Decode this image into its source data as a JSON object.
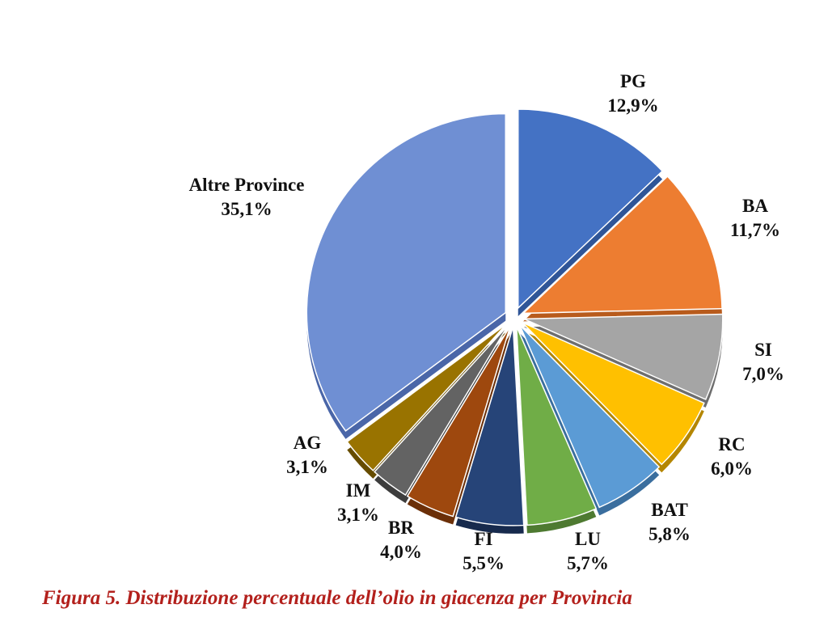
{
  "chart_data": {
    "type": "pie",
    "title": "",
    "slices": [
      {
        "label": "PG",
        "value_label": "12,9%",
        "value": 12.9,
        "color": "#4472c4",
        "dark": "#2f5597"
      },
      {
        "label": "BA",
        "value_label": "11,7%",
        "value": 11.7,
        "color": "#ed7d31",
        "dark": "#b85b1c"
      },
      {
        "label": "SI",
        "value_label": "7,0%",
        "value": 7.0,
        "color": "#a5a5a5",
        "dark": "#6e6e6e"
      },
      {
        "label": "RC",
        "value_label": "6,0%",
        "value": 6.0,
        "color": "#ffc000",
        "dark": "#b48600"
      },
      {
        "label": "BAT",
        "value_label": "5,8%",
        "value": 5.8,
        "color": "#5b9bd5",
        "dark": "#3a6e9e"
      },
      {
        "label": "LU",
        "value_label": "5,7%",
        "value": 5.7,
        "color": "#70ad47",
        "dark": "#4e7a31"
      },
      {
        "label": "FI",
        "value_label": "5,5%",
        "value": 5.5,
        "color": "#264478",
        "dark": "#172a4d"
      },
      {
        "label": "BR",
        "value_label": "4,0%",
        "value": 4.0,
        "color": "#9e480e",
        "dark": "#6b2f08"
      },
      {
        "label": "IM",
        "value_label": "3,1%",
        "value": 3.1,
        "color": "#636363",
        "dark": "#3d3d3d"
      },
      {
        "label": "AG",
        "value_label": "3,1%",
        "value": 3.1,
        "color": "#997300",
        "dark": "#664c00"
      },
      {
        "label": "Altre Province",
        "value_label": "35,1%",
        "value": 35.1,
        "color": "#6f8fd3",
        "dark": "#4a66a8"
      }
    ],
    "exploded": true,
    "legend": "none"
  },
  "caption": "Figura 5. Distribuzione percentuale dell’olio in giacenza per Provincia"
}
